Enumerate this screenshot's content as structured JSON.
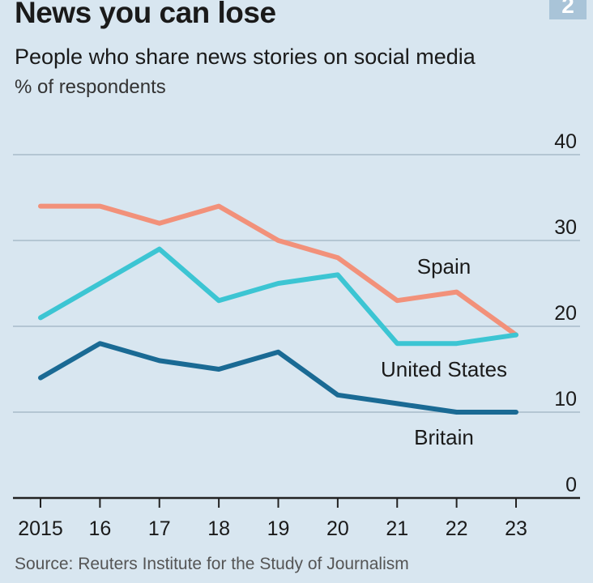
{
  "header": {
    "title": "News you can lose",
    "subtitle": "People who share news stories on social media",
    "unit": "% of respondents",
    "badge": "2"
  },
  "footer": {
    "source": "Source: Reuters Institute for the Study of Journalism"
  },
  "colors": {
    "background": "#d8e6f0",
    "spain": "#f2917a",
    "united_states": "#3cc5d3",
    "britain": "#1a6a94",
    "grid": "#b4c6d3",
    "axis": "#222222"
  },
  "chart_data": {
    "type": "line",
    "title": "News you can lose",
    "subtitle": "People who share news stories on social media",
    "ylabel": "% of respondents",
    "xlabel": "",
    "x": [
      2015,
      2016,
      2017,
      2018,
      2019,
      2020,
      2021,
      2022,
      2023
    ],
    "x_tick_labels": [
      "2015",
      "16",
      "17",
      "18",
      "19",
      "20",
      "21",
      "22",
      "23"
    ],
    "y_ticks": [
      0,
      10,
      20,
      30,
      40
    ],
    "ylim": [
      0,
      40
    ],
    "grid": true,
    "series": [
      {
        "key": "spain",
        "name": "Spain",
        "values": [
          34,
          34,
          32,
          34,
          30,
          28,
          23,
          24,
          19
        ]
      },
      {
        "key": "united_states",
        "name": "United States",
        "values": [
          21,
          25,
          29,
          23,
          25,
          26,
          18,
          18,
          19
        ]
      },
      {
        "key": "britain",
        "name": "Britain",
        "values": [
          14,
          18,
          16,
          15,
          17,
          12,
          11,
          10,
          10
        ]
      }
    ]
  }
}
